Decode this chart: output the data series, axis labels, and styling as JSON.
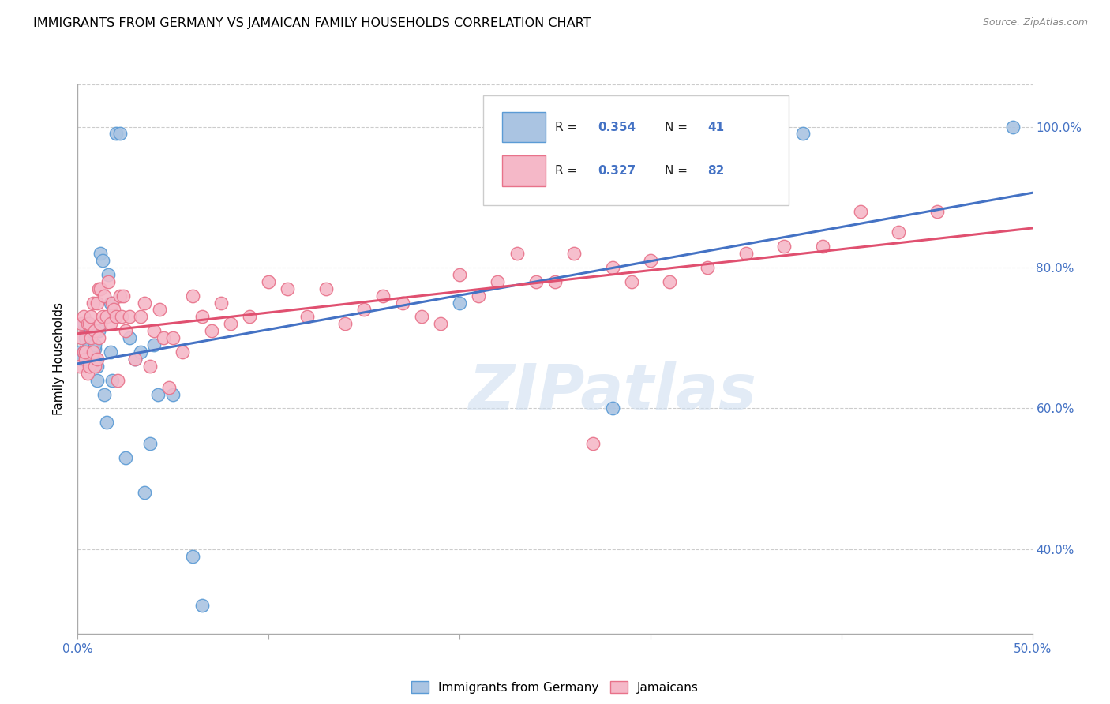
{
  "title": "IMMIGRANTS FROM GERMANY VS JAMAICAN FAMILY HOUSEHOLDS CORRELATION CHART",
  "source": "Source: ZipAtlas.com",
  "ylabel": "Family Households",
  "xlim": [
    0.0,
    0.5
  ],
  "ylim": [
    0.28,
    1.06
  ],
  "xtick_vals": [
    0.0,
    0.1,
    0.2,
    0.3,
    0.4,
    0.5
  ],
  "xtick_labels": [
    "0.0%",
    "",
    "",
    "",
    "",
    "50.0%"
  ],
  "ytick_vals": [
    0.4,
    0.6,
    0.8,
    1.0
  ],
  "ytick_labels": [
    "40.0%",
    "60.0%",
    "80.0%",
    "100.0%"
  ],
  "blue_R": "0.354",
  "blue_N": "41",
  "pink_R": "0.327",
  "pink_N": "82",
  "blue_scatter_color": "#aac4e2",
  "blue_edge_color": "#5b9bd5",
  "pink_scatter_color": "#f5b8c8",
  "pink_edge_color": "#e8728a",
  "blue_line_color": "#4472c4",
  "pink_line_color": "#e05070",
  "legend_label_blue": "Immigrants from Germany",
  "legend_label_pink": "Jamaicans",
  "watermark": "ZIPatlas",
  "grid_color": "#cccccc",
  "blue_x": [
    0.001,
    0.002,
    0.003,
    0.003,
    0.004,
    0.004,
    0.005,
    0.006,
    0.007,
    0.007,
    0.008,
    0.009,
    0.009,
    0.01,
    0.01,
    0.011,
    0.012,
    0.013,
    0.014,
    0.015,
    0.016,
    0.017,
    0.017,
    0.018,
    0.02,
    0.022,
    0.025,
    0.027,
    0.03,
    0.033,
    0.035,
    0.038,
    0.04,
    0.042,
    0.05,
    0.06,
    0.065,
    0.2,
    0.28,
    0.38,
    0.49
  ],
  "blue_y": [
    0.68,
    0.67,
    0.68,
    0.72,
    0.68,
    0.7,
    0.685,
    0.68,
    0.71,
    0.68,
    0.67,
    0.685,
    0.69,
    0.66,
    0.64,
    0.71,
    0.82,
    0.81,
    0.62,
    0.58,
    0.79,
    0.75,
    0.68,
    0.64,
    0.99,
    0.99,
    0.53,
    0.7,
    0.67,
    0.68,
    0.48,
    0.55,
    0.69,
    0.62,
    0.62,
    0.39,
    0.32,
    0.75,
    0.6,
    0.99,
    1.0
  ],
  "pink_x": [
    0.001,
    0.002,
    0.002,
    0.003,
    0.003,
    0.004,
    0.004,
    0.005,
    0.005,
    0.006,
    0.006,
    0.007,
    0.007,
    0.008,
    0.008,
    0.009,
    0.009,
    0.01,
    0.01,
    0.011,
    0.011,
    0.012,
    0.012,
    0.013,
    0.014,
    0.015,
    0.016,
    0.017,
    0.018,
    0.019,
    0.02,
    0.021,
    0.022,
    0.023,
    0.024,
    0.025,
    0.027,
    0.03,
    0.033,
    0.035,
    0.038,
    0.04,
    0.043,
    0.045,
    0.048,
    0.05,
    0.055,
    0.06,
    0.065,
    0.07,
    0.075,
    0.08,
    0.09,
    0.1,
    0.11,
    0.12,
    0.13,
    0.14,
    0.15,
    0.16,
    0.17,
    0.18,
    0.19,
    0.2,
    0.21,
    0.22,
    0.23,
    0.24,
    0.25,
    0.26,
    0.27,
    0.28,
    0.29,
    0.3,
    0.31,
    0.33,
    0.35,
    0.37,
    0.39,
    0.41,
    0.43,
    0.45
  ],
  "pink_y": [
    0.66,
    0.7,
    0.72,
    0.68,
    0.73,
    0.67,
    0.68,
    0.72,
    0.65,
    0.72,
    0.66,
    0.73,
    0.7,
    0.75,
    0.68,
    0.71,
    0.66,
    0.75,
    0.67,
    0.77,
    0.7,
    0.77,
    0.72,
    0.73,
    0.76,
    0.73,
    0.78,
    0.72,
    0.75,
    0.74,
    0.73,
    0.64,
    0.76,
    0.73,
    0.76,
    0.71,
    0.73,
    0.67,
    0.73,
    0.75,
    0.66,
    0.71,
    0.74,
    0.7,
    0.63,
    0.7,
    0.68,
    0.76,
    0.73,
    0.71,
    0.75,
    0.72,
    0.73,
    0.78,
    0.77,
    0.73,
    0.77,
    0.72,
    0.74,
    0.76,
    0.75,
    0.73,
    0.72,
    0.79,
    0.76,
    0.78,
    0.82,
    0.78,
    0.78,
    0.82,
    0.55,
    0.8,
    0.78,
    0.81,
    0.78,
    0.8,
    0.82,
    0.83,
    0.83,
    0.88,
    0.85,
    0.88
  ]
}
